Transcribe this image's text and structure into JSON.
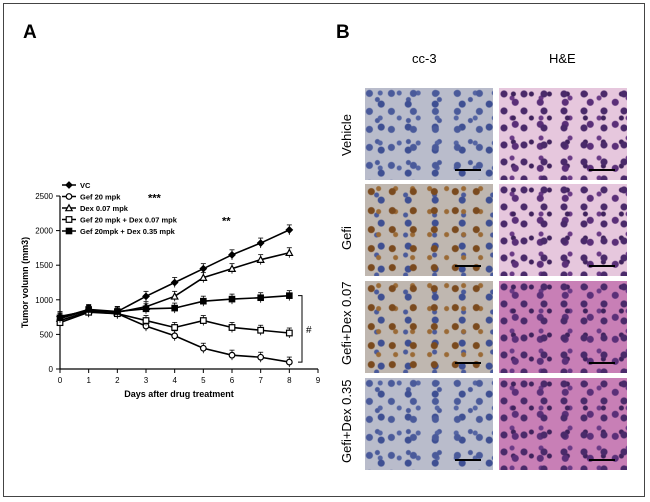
{
  "panel_a_label": "A",
  "panel_b_label": "B",
  "chart_data": {
    "type": "line",
    "xlabel": "Days after drug treatment",
    "ylabel": "Tumor volumn (mm3)",
    "xlim": [
      0,
      9
    ],
    "ylim": [
      0,
      2500
    ],
    "xticks": [
      0,
      1,
      2,
      3,
      4,
      5,
      6,
      7,
      8,
      9
    ],
    "yticks": [
      0,
      500,
      1000,
      1500,
      2000,
      2500
    ],
    "legend": "top-left",
    "significance_mark": "#",
    "x": [
      0,
      1,
      2,
      3,
      4,
      5,
      6,
      7,
      8
    ],
    "series": [
      {
        "name": "VC",
        "marker": "diamond",
        "values": [
          760,
          840,
          830,
          1050,
          1250,
          1450,
          1650,
          1820,
          2010
        ]
      },
      {
        "name": "Gef 20 mpk",
        "stars": "***",
        "marker": "circle-open",
        "values": [
          700,
          830,
          800,
          620,
          480,
          300,
          200,
          170,
          100
        ]
      },
      {
        "name": "Dex 0.07 mpk",
        "marker": "triangle-open",
        "values": [
          730,
          850,
          820,
          900,
          1050,
          1320,
          1450,
          1580,
          1680
        ]
      },
      {
        "name": "Gef 20 mpk + Dex 0.07 mpk",
        "stars": "**",
        "marker": "square-open",
        "values": [
          670,
          820,
          800,
          700,
          600,
          700,
          600,
          560,
          520
        ]
      },
      {
        "name": "Gef 20mpk + Dex 0.35 mpk",
        "marker": "square",
        "values": [
          740,
          860,
          830,
          870,
          880,
          980,
          1010,
          1030,
          1060
        ]
      }
    ]
  },
  "panel_b": {
    "columns": [
      "cc-3",
      "H&E"
    ],
    "rows": [
      "Vehicle",
      "Gefi",
      "Gefi+Dex 0.07",
      "Gefi+Dex 0.35"
    ]
  }
}
